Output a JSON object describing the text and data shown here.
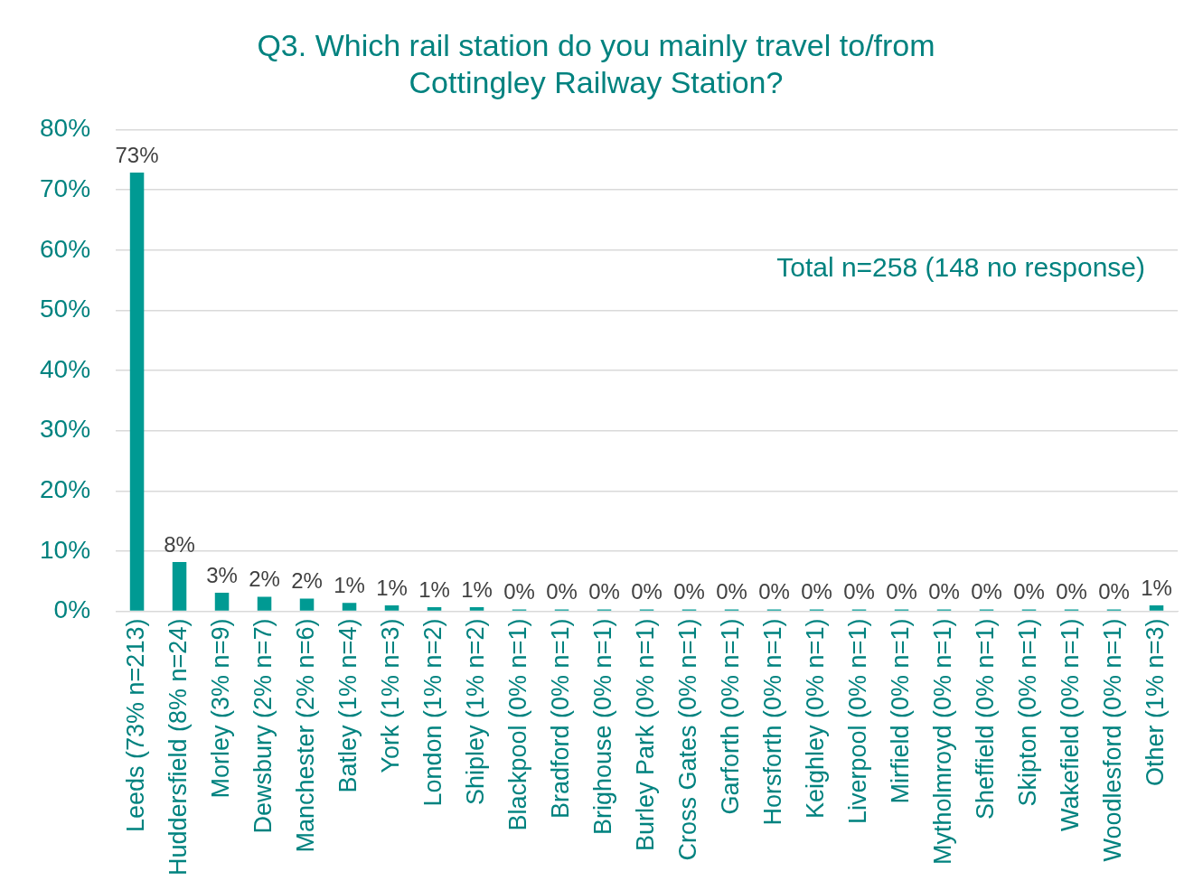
{
  "chart_data": {
    "type": "bar",
    "title": "Q3. Which rail station do you mainly travel to/from Cottingley Railway Station?",
    "categories": [
      "Leeds (73% n=213)",
      "Huddersfield (8% n=24)",
      "Morley (3% n=9)",
      "Dewsbury (2% n=7)",
      "Manchester (2% n=6)",
      "Batley (1% n=4)",
      "York (1% n=3)",
      "London (1% n=2)",
      "Shipley (1% n=2)",
      "Blackpool (0% n=1)",
      "Bradford (0% n=1)",
      "Brighouse (0% n=1)",
      "Burley Park (0% n=1)",
      "Cross Gates (0% n=1)",
      "Garforth (0% n=1)",
      "Horsforth (0% n=1)",
      "Keighley (0% n=1)",
      "Liverpool (0% n=1)",
      "Mirfield (0% n=1)",
      "Mytholmroyd (0% n=1)",
      "Sheffield (0% n=1)",
      "Skipton (0% n=1)",
      "Wakefield (0% n=1)",
      "Woodlesford (0% n=1)",
      "Other (1% n=3)"
    ],
    "values": [
      72.9,
      8.2,
      3.1,
      2.4,
      2.1,
      1.4,
      1.0,
      0.7,
      0.7,
      0.3,
      0.3,
      0.3,
      0.3,
      0.3,
      0.3,
      0.3,
      0.3,
      0.3,
      0.3,
      0.3,
      0.3,
      0.3,
      0.3,
      0.3,
      1.0
    ],
    "value_labels": [
      "73%",
      "8%",
      "3%",
      "2%",
      "2%",
      "1%",
      "1%",
      "1%",
      "1%",
      "0%",
      "0%",
      "0%",
      "0%",
      "0%",
      "0%",
      "0%",
      "0%",
      "0%",
      "0%",
      "0%",
      "0%",
      "0%",
      "0%",
      "0%",
      "1%"
    ],
    "color": "#009a93",
    "ylim": [
      0,
      80
    ],
    "yticks": [
      {
        "value": 0,
        "label": "0%"
      },
      {
        "value": 10,
        "label": "10%"
      },
      {
        "value": 20,
        "label": "20%"
      },
      {
        "value": 30,
        "label": "30%"
      },
      {
        "value": 40,
        "label": "40%"
      },
      {
        "value": 50,
        "label": "50%"
      },
      {
        "value": 60,
        "label": "60%"
      },
      {
        "value": 70,
        "label": "70%"
      },
      {
        "value": 80,
        "label": "80%"
      }
    ],
    "grid": "y",
    "annotations": [
      "Total n=258 (148 no response)"
    ]
  }
}
